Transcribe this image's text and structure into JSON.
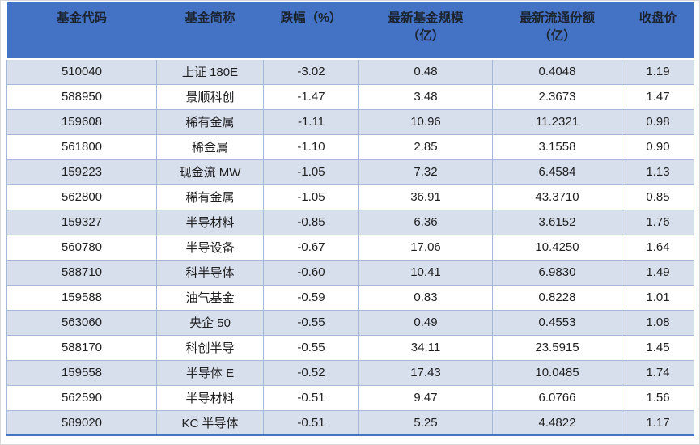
{
  "colors": {
    "header_bg": "#4472C4",
    "header_text": "#1b2430",
    "band_row_bg": "#D7DEEC",
    "grid_border": "#A6B8D8",
    "bottom_border": "#4472C4"
  },
  "table": {
    "headers": [
      {
        "line1": "基金代码",
        "line2": ""
      },
      {
        "line1": "基金简称",
        "line2": ""
      },
      {
        "line1": "跌幅（%）",
        "line2": ""
      },
      {
        "line1": "最新基金规模",
        "line2": "（亿）"
      },
      {
        "line1": "最新流通份额",
        "line2": "（亿）"
      },
      {
        "line1": "收盘价",
        "line2": ""
      }
    ],
    "rows": [
      [
        "510040",
        "上证 180E",
        "-3.02",
        "0.48",
        "0.4048",
        "1.19"
      ],
      [
        "588950",
        "景顺科创",
        "-1.47",
        "3.48",
        "2.3673",
        "1.47"
      ],
      [
        "159608",
        "稀有金属",
        "-1.11",
        "10.96",
        "11.2321",
        "0.98"
      ],
      [
        "561800",
        "稀金属",
        "-1.10",
        "2.85",
        "3.1558",
        "0.90"
      ],
      [
        "159223",
        "现金流 MW",
        "-1.05",
        "7.32",
        "6.4584",
        "1.13"
      ],
      [
        "562800",
        "稀有金属",
        "-1.05",
        "36.91",
        "43.3710",
        "0.85"
      ],
      [
        "159327",
        "半导材料",
        "-0.85",
        "6.36",
        "3.6152",
        "1.76"
      ],
      [
        "560780",
        "半导设备",
        "-0.67",
        "17.06",
        "10.4250",
        "1.64"
      ],
      [
        "588710",
        "科半导体",
        "-0.60",
        "10.41",
        "6.9830",
        "1.49"
      ],
      [
        "159588",
        "油气基金",
        "-0.59",
        "0.83",
        "0.8228",
        "1.01"
      ],
      [
        "563060",
        "央企 50",
        "-0.55",
        "0.49",
        "0.4553",
        "1.08"
      ],
      [
        "588170",
        "科创半导",
        "-0.55",
        "34.11",
        "23.5915",
        "1.45"
      ],
      [
        "159558",
        "半导体 E",
        "-0.52",
        "17.43",
        "10.0485",
        "1.74"
      ],
      [
        "562590",
        "半导材料",
        "-0.51",
        "9.47",
        "6.0766",
        "1.56"
      ],
      [
        "589020",
        "KC 半导体",
        "-0.51",
        "5.25",
        "4.4822",
        "1.17"
      ]
    ]
  }
}
